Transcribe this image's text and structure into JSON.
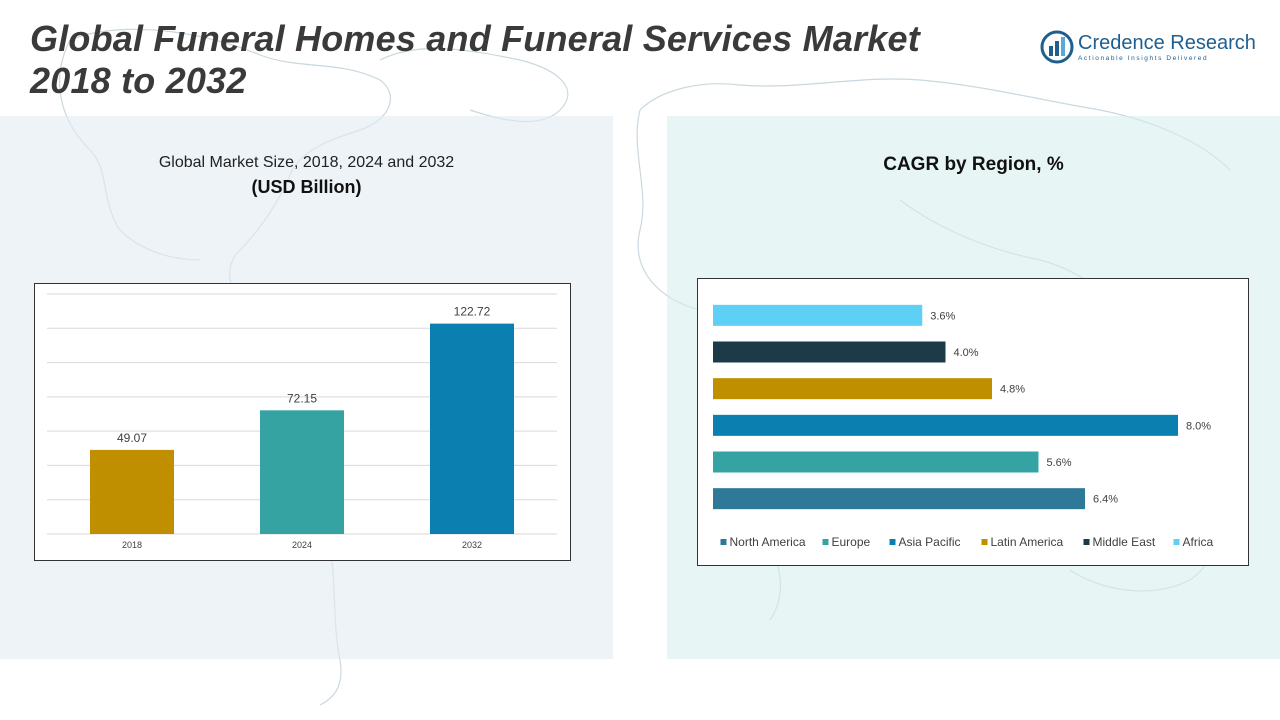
{
  "header": {
    "title_line1": "Global Funeral Homes and Funeral Services Market",
    "title_line2": "2018 to 2032"
  },
  "logo": {
    "name": "Credence Research",
    "tagline": "Actionable Insights Delivered"
  },
  "left_panel": {
    "heading": "Global Market Size, 2018, 2024 and 2032",
    "subheading": "(USD Billion)"
  },
  "right_panel": {
    "heading": "CAGR by Region, %"
  },
  "chart_data": [
    {
      "type": "bar",
      "categories": [
        "2018",
        "2024",
        "2032"
      ],
      "values": [
        49.07,
        72.15,
        122.72
      ],
      "value_labels": [
        "49.07",
        "72.15",
        "122.72"
      ],
      "colors": [
        "#bf8f00",
        "#36a3a3",
        "#0b7fb0"
      ],
      "title": "Global Market Size, 2018, 2024 and 2032",
      "ylabel": "(USD Billion)",
      "ylim": [
        0,
        140
      ],
      "grid": true
    },
    {
      "type": "bar",
      "orientation": "horizontal",
      "categories": [
        "North America",
        "Europe",
        "Asia Pacific",
        "Latin America",
        "Middle East",
        "Africa"
      ],
      "values": [
        6.4,
        5.6,
        8.0,
        4.8,
        4.0,
        3.6
      ],
      "value_labels": [
        "6.4%",
        "5.6%",
        "8.0%",
        "4.8%",
        "4.0%",
        "3.6%"
      ],
      "colors": [
        "#2e7898",
        "#36a3a3",
        "#0b7fb0",
        "#bf8f00",
        "#1c3a48",
        "#5fd0f5"
      ],
      "title": "CAGR by Region, %",
      "legend": "bottom",
      "xlim": [
        0,
        8.0
      ],
      "grid": false
    }
  ]
}
